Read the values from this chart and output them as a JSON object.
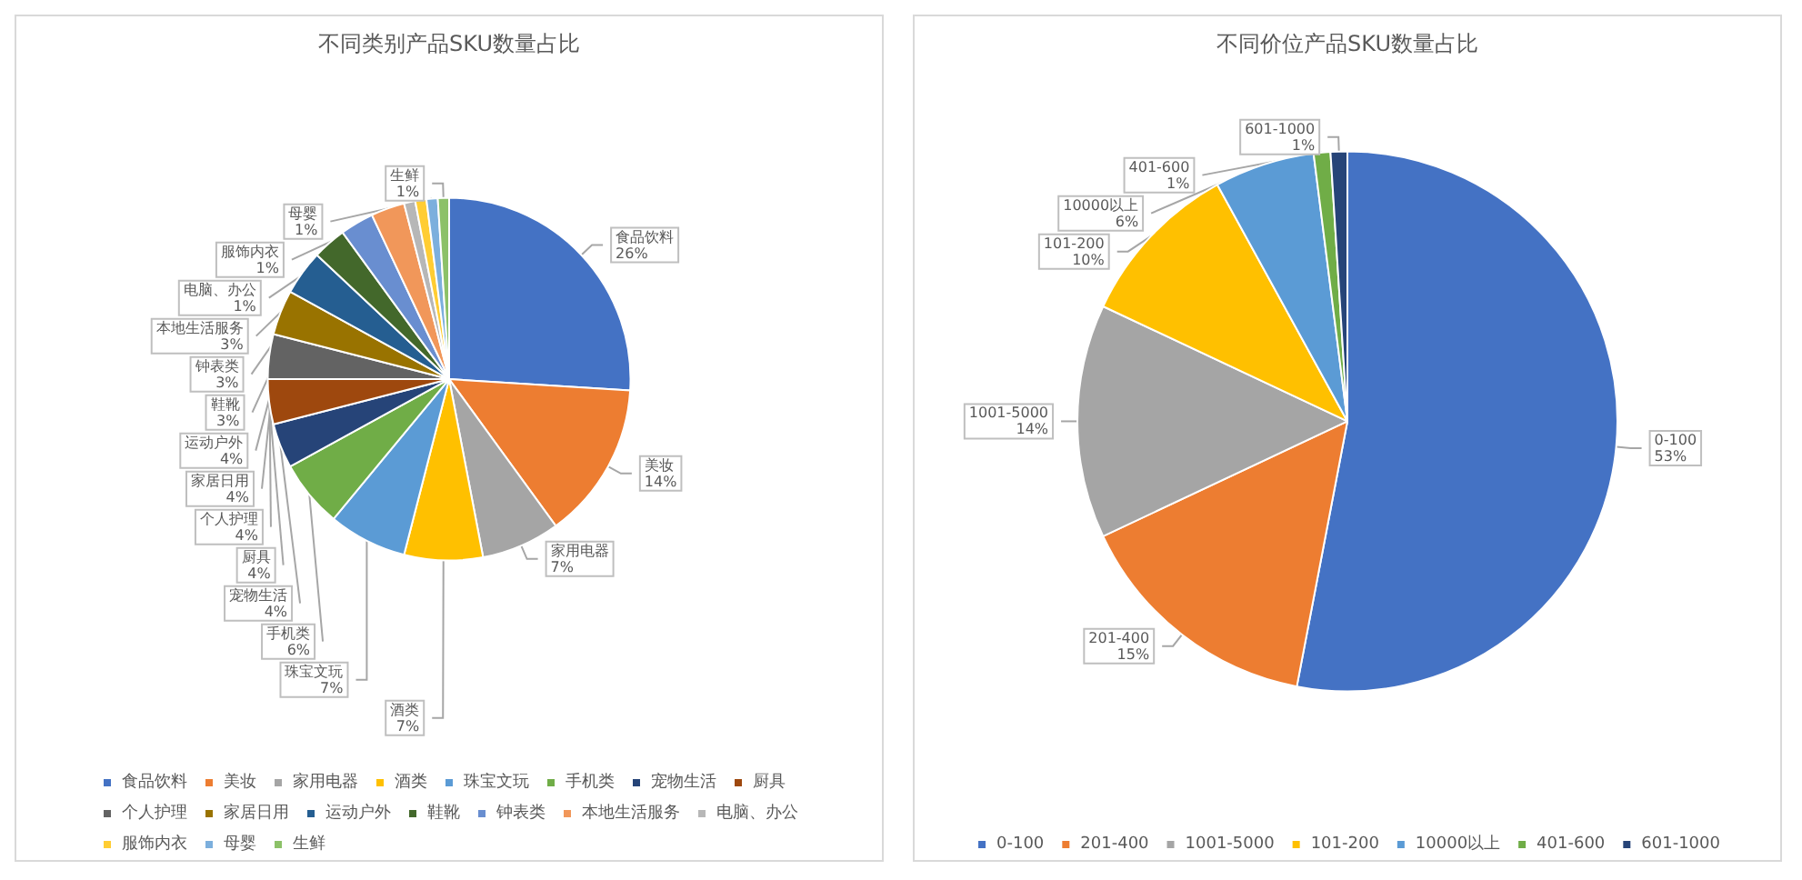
{
  "chart_data": [
    {
      "type": "pie",
      "title": "不同类别产品SKU数量占比",
      "categories": [
        "食品饮料",
        "美妆",
        "家用电器",
        "酒类",
        "珠宝文玩",
        "手机类",
        "宠物生活",
        "厨具",
        "个人护理",
        "家居日用",
        "运动户外",
        "鞋靴",
        "钟表类",
        "本地生活服务",
        "电脑、办公",
        "服饰内衣",
        "母婴",
        "生鲜"
      ],
      "values": [
        26,
        14,
        7,
        7,
        7,
        6,
        4,
        4,
        4,
        4,
        4,
        3,
        3,
        3,
        1,
        1,
        1,
        1
      ],
      "value_labels": [
        "26%",
        "14%",
        "7%",
        "7%",
        "7%",
        "6%",
        "4%",
        "4%",
        "4%",
        "4%",
        "4%",
        "3%",
        "3%",
        "3%",
        "1%",
        "1%",
        "1%",
        "1%"
      ],
      "colors": [
        "#4472c4",
        "#ed7d31",
        "#a5a5a5",
        "#ffc000",
        "#5b9bd5",
        "#70ad47",
        "#264478",
        "#9e480e",
        "#636363",
        "#997300",
        "#255e91",
        "#43682b",
        "#698ed0",
        "#f1975a",
        "#b7b7b7",
        "#ffcd33",
        "#7cafdd",
        "#8cc168"
      ],
      "legend": "bottom"
    },
    {
      "type": "pie",
      "title": "不同价位产品SKU数量占比",
      "categories": [
        "0-100",
        "201-400",
        "1001-5000",
        "101-200",
        "10000以上",
        "401-600",
        "601-1000"
      ],
      "values": [
        53,
        15,
        14,
        10,
        6,
        1,
        1
      ],
      "value_labels": [
        "53%",
        "15%",
        "14%",
        "10%",
        "6%",
        "1%",
        "1%"
      ],
      "colors": [
        "#4472c4",
        "#ed7d31",
        "#a5a5a5",
        "#ffc000",
        "#5b9bd5",
        "#70ad47",
        "#264478"
      ],
      "legend": "bottom"
    }
  ]
}
